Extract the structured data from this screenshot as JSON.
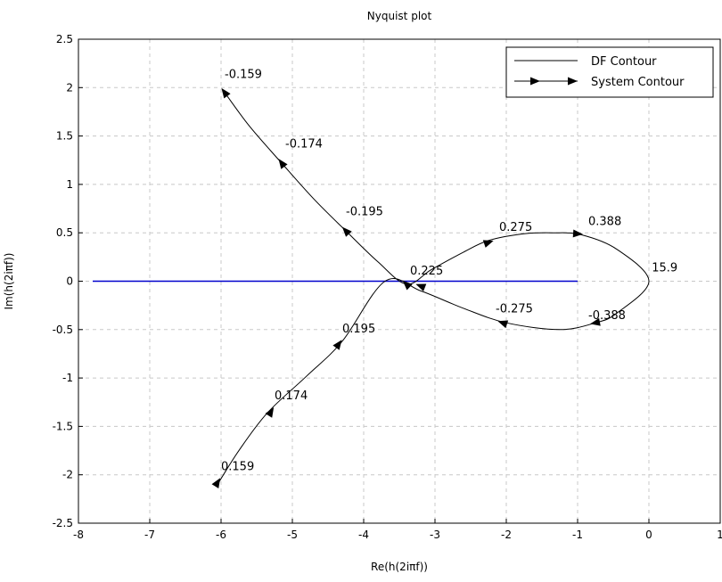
{
  "chart_data": {
    "type": "line",
    "title": "Nyquist plot",
    "xlabel": "Re(h(2iπf))",
    "ylabel": "Im(h(2iπf))",
    "xlim": [
      -8,
      1
    ],
    "ylim": [
      -2.5,
      2.5
    ],
    "x_ticks": [
      -8,
      -7,
      -6,
      -5,
      -4,
      -3,
      -2,
      -1,
      0,
      1
    ],
    "y_ticks": [
      -2.5,
      -2,
      -1.5,
      -1,
      -0.5,
      0,
      0.5,
      1,
      1.5,
      2,
      2.5
    ],
    "x_tick_labels": [
      "-8",
      "-7",
      "-6",
      "-5",
      "-4",
      "-3",
      "-2",
      "-1",
      "0",
      "1"
    ],
    "y_tick_labels": [
      "-2.5",
      "-2",
      "-1.5",
      "-1",
      "-0.5",
      "0",
      "0.5",
      "1",
      "1.5",
      "2",
      "2.5"
    ],
    "grid": true,
    "legend_position": "top-right",
    "series": [
      {
        "name": "DF Contour",
        "color": "#0000cc",
        "x": [
          -7.8,
          -1.0
        ],
        "y": [
          0,
          0
        ]
      },
      {
        "name": "System Contour",
        "color": "#000000",
        "x": [
          -5.95,
          -5.6,
          -5.15,
          -4.7,
          -4.25,
          -3.8,
          -3.4,
          -3.05,
          -2.6,
          -2.25,
          -1.75,
          -1.35,
          -0.95,
          -0.45,
          0.0,
          -0.45,
          -0.75,
          -1.25,
          -2.0,
          -2.6,
          -3.2,
          -3.7,
          -4.3,
          -4.8,
          -5.35,
          -5.75,
          -6.05
        ],
        "y": [
          1.95,
          1.6,
          1.22,
          0.85,
          0.52,
          0.2,
          -0.03,
          0.12,
          0.3,
          0.42,
          0.49,
          0.5,
          0.48,
          0.33,
          0.0,
          -0.33,
          -0.43,
          -0.5,
          -0.43,
          -0.28,
          -0.1,
          0.0,
          -0.62,
          -0.98,
          -1.36,
          -1.75,
          -2.1
        ]
      }
    ],
    "arrows": [
      {
        "x": -5.95,
        "y": 1.95,
        "dx": -0.25,
        "dy": 0.25
      },
      {
        "x": -5.15,
        "y": 1.22,
        "dx": -0.3,
        "dy": 0.3
      },
      {
        "x": -4.25,
        "y": 0.52,
        "dx": -0.35,
        "dy": 0.28
      },
      {
        "x": -3.4,
        "y": -0.03,
        "dx": -0.35,
        "dy": 0.25
      },
      {
        "x": -2.25,
        "y": 0.4,
        "dx": 0.4,
        "dy": 0.1
      },
      {
        "x": -1.0,
        "y": 0.49,
        "dx": 0.4,
        "dy": -0.02
      },
      {
        "x": -0.75,
        "y": -0.43,
        "dx": -0.35,
        "dy": -0.05
      },
      {
        "x": -2.05,
        "y": -0.43,
        "dx": -0.4,
        "dy": 0.1
      },
      {
        "x": -3.2,
        "y": -0.05,
        "dx": -0.35,
        "dy": 0.1
      },
      {
        "x": -4.35,
        "y": -0.65,
        "dx": 0.3,
        "dy": 0.3
      },
      {
        "x": -5.3,
        "y": -1.35,
        "dx": 0.25,
        "dy": 0.3
      },
      {
        "x": -6.05,
        "y": -2.08,
        "dx": 0.25,
        "dy": 0.3
      }
    ],
    "annotations": [
      {
        "text": "-0.159",
        "x": -5.95,
        "y": 2.1
      },
      {
        "text": "-0.174",
        "x": -5.1,
        "y": 1.38
      },
      {
        "text": "-0.195",
        "x": -4.25,
        "y": 0.68
      },
      {
        "text": "0.275",
        "x": -2.1,
        "y": 0.52
      },
      {
        "text": "0.388",
        "x": -0.85,
        "y": 0.58
      },
      {
        "text": "15.9",
        "x": 0.04,
        "y": 0.1
      },
      {
        "text": "0.225",
        "x": -3.35,
        "y": 0.07
      },
      {
        "text": "-0.275",
        "x": -2.15,
        "y": -0.32
      },
      {
        "text": "-0.388",
        "x": -0.85,
        "y": -0.39
      },
      {
        "text": "0.195",
        "x": -4.3,
        "y": -0.53
      },
      {
        "text": "0.174",
        "x": -5.25,
        "y": -1.22
      },
      {
        "text": "0.159",
        "x": -6.0,
        "y": -1.95
      }
    ]
  }
}
